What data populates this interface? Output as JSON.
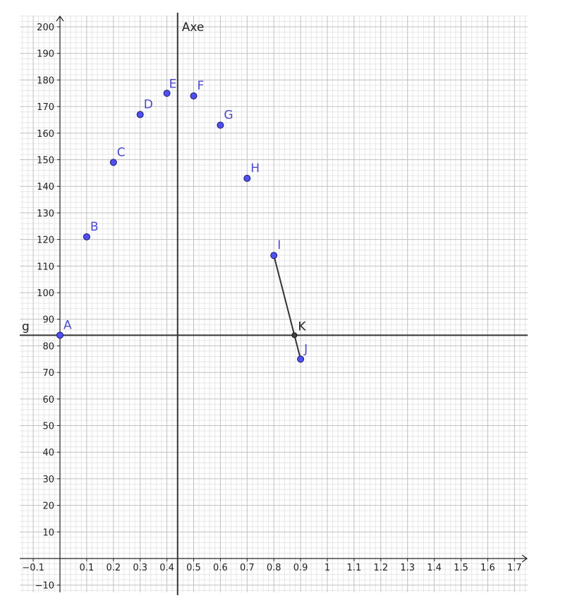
{
  "chart_data": {
    "type": "scatter",
    "title": "",
    "xlabel": "",
    "ylabel": "",
    "xlim": [
      -0.15,
      1.75
    ],
    "ylim": [
      -13,
      203
    ],
    "grid": true,
    "x_ticks": [
      -0.1,
      0.1,
      0.2,
      0.3,
      0.4,
      0.5,
      0.6,
      0.7,
      0.8,
      0.9,
      1,
      1.1,
      1.2,
      1.3,
      1.4,
      1.5,
      1.6,
      1.7
    ],
    "x_tick_labels": [
      "−0.1",
      "0.1",
      "0.2",
      "0.3",
      "0.4",
      "0.5",
      "0.6",
      "0.7",
      "0.8",
      "0.9",
      "1",
      "1.1",
      "1.2",
      "1.3",
      "1.4",
      "1.5",
      "1.6",
      "1.7"
    ],
    "y_ticks": [
      -10,
      10,
      20,
      30,
      40,
      50,
      60,
      70,
      80,
      90,
      100,
      110,
      120,
      130,
      140,
      150,
      160,
      170,
      180,
      190,
      200
    ],
    "y_tick_labels": [
      "−10",
      "10",
      "20",
      "30",
      "40",
      "50",
      "60",
      "70",
      "80",
      "90",
      "100",
      "110",
      "120",
      "130",
      "140",
      "150",
      "160",
      "170",
      "180",
      "190",
      "200"
    ],
    "points": [
      {
        "label": "A",
        "x": 0,
        "y": 84
      },
      {
        "label": "B",
        "x": 0.1,
        "y": 121
      },
      {
        "label": "C",
        "x": 0.2,
        "y": 149
      },
      {
        "label": "D",
        "x": 0.3,
        "y": 167
      },
      {
        "label": "E",
        "x": 0.4,
        "y": 175
      },
      {
        "label": "F",
        "x": 0.5,
        "y": 174
      },
      {
        "label": "G",
        "x": 0.6,
        "y": 163
      },
      {
        "label": "H",
        "x": 0.7,
        "y": 143
      },
      {
        "label": "I",
        "x": 0.8,
        "y": 114
      },
      {
        "label": "J",
        "x": 0.9,
        "y": 75
      }
    ],
    "intersection_point": {
      "label": "K",
      "x": 0.877,
      "y": 84
    },
    "segment": {
      "from": "I",
      "to": "J"
    },
    "horizontal_line": {
      "label": "g",
      "y": 84
    },
    "vertical_line": {
      "label": "Axe",
      "x": 0.44
    },
    "colors": {
      "point_fill": "#5050f0",
      "point_stroke": "#1a1a6e",
      "point_label": "#4a4acc",
      "intersection_fill": "#444444",
      "line": "#333333",
      "major_grid": "#c0c0c0",
      "minor_grid": "#e6e6e6",
      "axis": "#222222"
    }
  }
}
